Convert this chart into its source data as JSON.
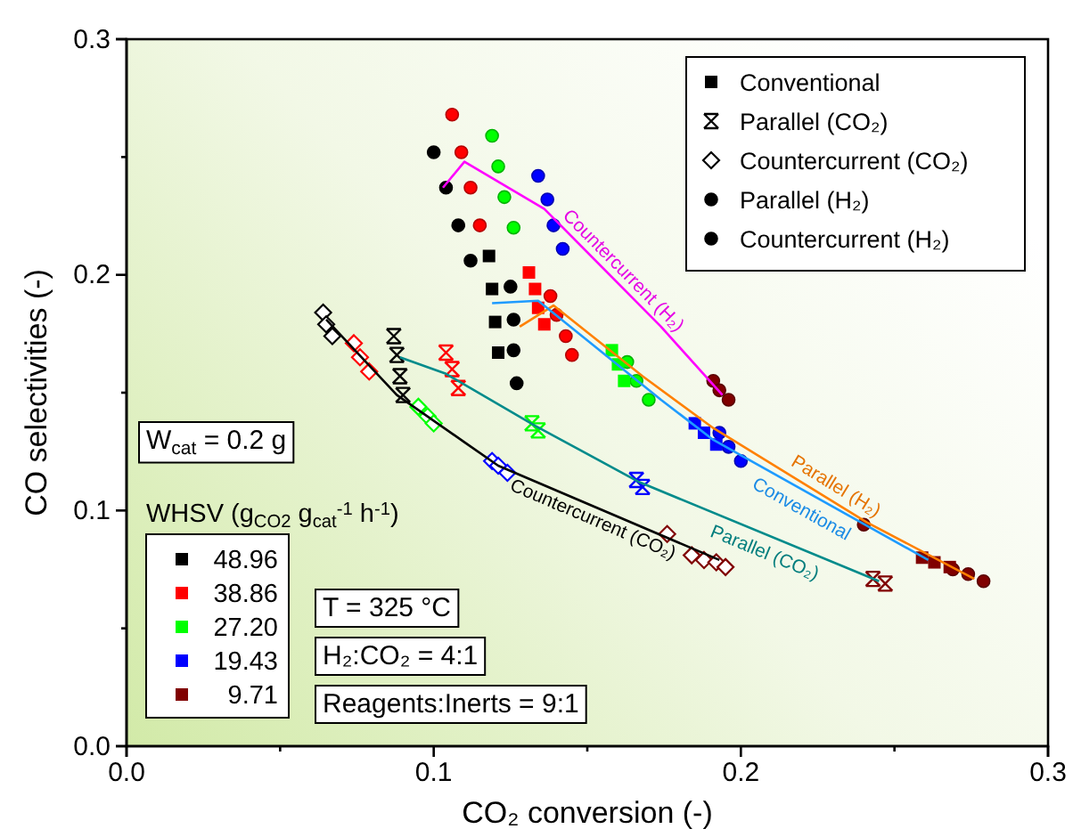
{
  "chart_data": {
    "type": "scatter",
    "xlabel": "CO₂ conversion (-)",
    "ylabel": "CO selectivities (-)",
    "legend": "top right",
    "legend_title": "WHSV (g$_{CO2}$ g$_{cat}$$^{-1}$ h$^{-1}$)",
    "xlim": [
      0,
      0.3
    ],
    "ylim": [
      0,
      0.3
    ],
    "xticks": [
      {
        "value": 0,
        "label": "0.0"
      },
      {
        "value": 0.05,
        "label": null
      },
      {
        "value": 0.1,
        "label": "0.1"
      },
      {
        "value": 0.15,
        "label": null
      },
      {
        "value": 0.2,
        "label": "0.2"
      },
      {
        "value": 0.25,
        "label": null
      },
      {
        "value": 0.3,
        "label": "0.3"
      }
    ],
    "yticks": [
      {
        "value": 0,
        "label": "0.0"
      },
      {
        "value": 0.05,
        "label": null
      },
      {
        "value": 0.1,
        "label": "0.1"
      },
      {
        "value": 0.15,
        "label": null
      },
      {
        "value": 0.2,
        "label": "0.2"
      },
      {
        "value": 0.25,
        "label": null
      },
      {
        "value": 0.3,
        "label": "0.3"
      }
    ],
    "annotations": [
      "W$_{cat}$ = 0.2 g",
      "T = 325 °C",
      "H₂:CO₂ = 4:1",
      "Reagents:Inerts = 9:1"
    ],
    "series": [
      {
        "name": "Conventional",
        "marker": "square",
        "color": "#000000",
        "x": [
          0.118,
          0.119,
          0.12,
          0.121,
          0.131,
          0.133,
          0.134,
          0.136,
          0.158,
          0.16,
          0.162,
          0.185,
          0.188,
          0.192,
          0.259,
          0.263,
          0.268
        ],
        "values": [
          0.208,
          0.194,
          0.18,
          0.167,
          0.201,
          0.194,
          0.186,
          0.179,
          0.168,
          0.162,
          0.155,
          0.137,
          0.133,
          0.128,
          0.08,
          0.078,
          0.076
        ],
        "colors": [
          "#000000",
          "#000000",
          "#000000",
          "#000000",
          "#ff0000",
          "#ff0000",
          "#ff0000",
          "#ff0000",
          "#00ff00",
          "#00ff00",
          "#00ff00",
          "#0000ff",
          "#0000ff",
          "#0000ff",
          "#800000",
          "#800000",
          "#800000"
        ]
      },
      {
        "name": "Parallel (CO₂)",
        "marker": "cross",
        "color": "#000000",
        "x": [
          0.087,
          0.088,
          0.089,
          0.09,
          0.104,
          0.106,
          0.108,
          0.132,
          0.134,
          0.166,
          0.168,
          0.243,
          0.247
        ],
        "values": [
          0.174,
          0.166,
          0.157,
          0.149,
          0.167,
          0.16,
          0.152,
          0.137,
          0.134,
          0.113,
          0.11,
          0.071,
          0.069
        ],
        "colors": [
          "#000000",
          "#000000",
          "#000000",
          "#000000",
          "#ff0000",
          "#ff0000",
          "#ff0000",
          "#00ff00",
          "#00ff00",
          "#0000ff",
          "#0000ff",
          "#800000",
          "#800000"
        ]
      },
      {
        "name": "Countercurrent (CO₂)",
        "marker": "diamond",
        "color": "#000000",
        "x": [
          0.064,
          0.065,
          0.067,
          0.074,
          0.076,
          0.079,
          0.095,
          0.098,
          0.1,
          0.119,
          0.121,
          0.124,
          0.176,
          0.184,
          0.188,
          0.192,
          0.195
        ],
        "values": [
          0.184,
          0.179,
          0.174,
          0.171,
          0.165,
          0.159,
          0.144,
          0.14,
          0.137,
          0.121,
          0.119,
          0.116,
          0.09,
          0.081,
          0.079,
          0.078,
          0.076
        ],
        "colors": [
          "#000000",
          "#000000",
          "#000000",
          "#ff0000",
          "#ff0000",
          "#ff0000",
          "#00ff00",
          "#00ff00",
          "#00ff00",
          "#0000ff",
          "#0000ff",
          "#0000ff",
          "#800000",
          "#800000",
          "#800000",
          "#800000",
          "#800000"
        ]
      },
      {
        "name": "Parallel (H₂)",
        "marker": "circle",
        "color": "#000000",
        "x": [
          0.125,
          0.126,
          0.126,
          0.127,
          0.138,
          0.14,
          0.143,
          0.145,
          0.163,
          0.166,
          0.17,
          0.193,
          0.196,
          0.2,
          0.24,
          0.269,
          0.274,
          0.279
        ],
        "values": [
          0.195,
          0.181,
          0.168,
          0.154,
          0.191,
          0.183,
          0.174,
          0.166,
          0.163,
          0.155,
          0.147,
          0.133,
          0.127,
          0.121,
          0.094,
          0.075,
          0.073,
          0.07
        ],
        "colors": [
          "#000000",
          "#000000",
          "#000000",
          "#000000",
          "#ff0000",
          "#ff0000",
          "#ff0000",
          "#ff0000",
          "#00ff00",
          "#00ff00",
          "#00ff00",
          "#0000ff",
          "#0000ff",
          "#0000ff",
          "#800000",
          "#800000",
          "#800000",
          "#800000"
        ]
      },
      {
        "name": "Countercurrent (H₂)",
        "marker": "circle",
        "color": "#000000",
        "x": [
          0.1,
          0.104,
          0.108,
          0.112,
          0.106,
          0.109,
          0.112,
          0.115,
          0.119,
          0.121,
          0.123,
          0.126,
          0.134,
          0.137,
          0.139,
          0.142,
          0.191,
          0.193,
          0.196
        ],
        "values": [
          0.252,
          0.237,
          0.221,
          0.206,
          0.268,
          0.252,
          0.237,
          0.221,
          0.259,
          0.246,
          0.233,
          0.22,
          0.242,
          0.232,
          0.221,
          0.211,
          0.155,
          0.151,
          0.147
        ],
        "colors": [
          "#000000",
          "#000000",
          "#000000",
          "#000000",
          "#ff0000",
          "#ff0000",
          "#ff0000",
          "#ff0000",
          "#00ff00",
          "#00ff00",
          "#00ff00",
          "#00ff00",
          "#0000ff",
          "#0000ff",
          "#0000ff",
          "#0000ff",
          "#800000",
          "#800000",
          "#800000"
        ]
      },
      {
        "name": "Countercurrent (H₂)",
        "type": "line",
        "color": "#ff00ff",
        "x": [
          0.103,
          0.11,
          0.136,
          0.174,
          0.194
        ],
        "values": [
          0.237,
          0.248,
          0.228,
          0.178,
          0.149
        ]
      },
      {
        "name": "Parallel (H₂)",
        "type": "line",
        "color": "#ff8000",
        "x": [
          0.128,
          0.139,
          0.168,
          0.191,
          0.241,
          0.276
        ],
        "values": [
          0.178,
          0.187,
          0.157,
          0.135,
          0.095,
          0.071
        ]
      },
      {
        "name": "Conventional",
        "type": "line",
        "color": "#1e9bff",
        "x": [
          0.119,
          0.134,
          0.174,
          0.191,
          0.261
        ],
        "values": [
          0.188,
          0.189,
          0.147,
          0.13,
          0.079
        ]
      },
      {
        "name": "Parallel (CO₂)",
        "type": "line",
        "color": "#008b8b",
        "x": [
          0.089,
          0.104,
          0.133,
          0.167,
          0.245
        ],
        "values": [
          0.165,
          0.158,
          0.136,
          0.112,
          0.07
        ]
      },
      {
        "name": "Countercurrent (CO₂)",
        "type": "line",
        "color": "#000000",
        "x": [
          0.065,
          0.088,
          0.11,
          0.121,
          0.193
        ],
        "values": [
          0.181,
          0.149,
          0.129,
          0.119,
          0.079
        ]
      },
      {
        "name": "48.96",
        "marker": "square",
        "color": "#000000"
      },
      {
        "name": "38.86",
        "marker": "square",
        "color": "#ff0000"
      },
      {
        "name": "27.20",
        "marker": "square",
        "color": "#00ff00"
      },
      {
        "name": "19.43",
        "marker": "square",
        "color": "#0000ff"
      },
      {
        "name": "9.71",
        "marker": "square",
        "color": "#800000"
      }
    ]
  }
}
